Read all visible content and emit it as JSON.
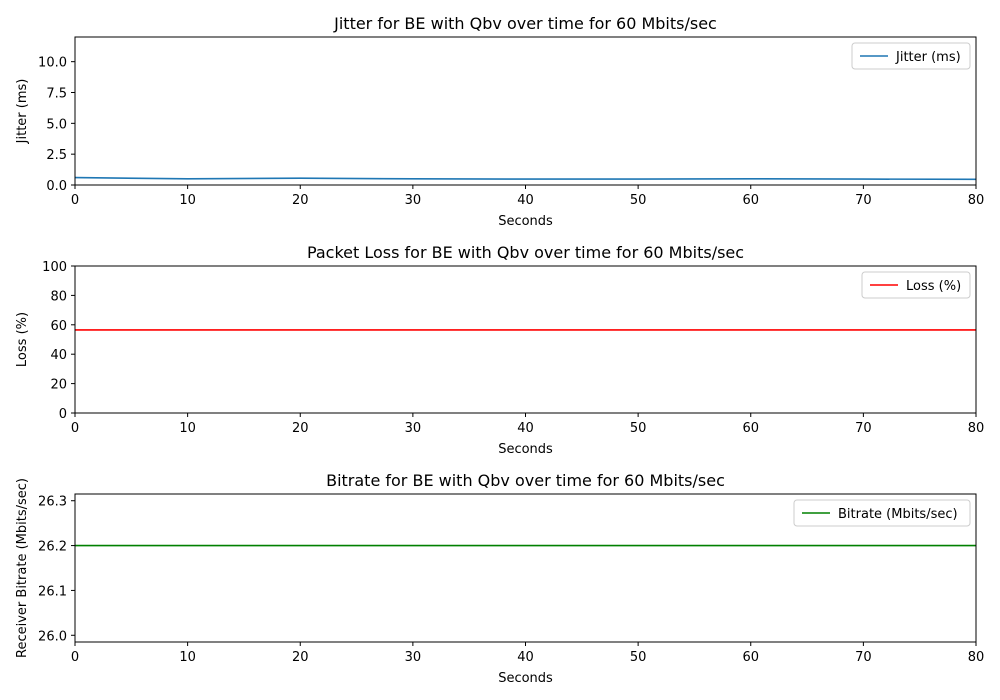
{
  "chart_data": [
    {
      "type": "line",
      "title": "Jitter for BE with Qbv over time for 60 Mbits/sec",
      "xlabel": "Seconds",
      "ylabel": "Jitter (ms)",
      "xlim": [
        0,
        80
      ],
      "ylim": [
        0,
        12
      ],
      "xticks": [
        "0",
        "10",
        "20",
        "30",
        "40",
        "50",
        "60",
        "70",
        "80"
      ],
      "yticks": [
        "0.0",
        "2.5",
        "5.0",
        "7.5",
        "10.0"
      ],
      "grid": false,
      "legend_position": "top-right",
      "series": [
        {
          "name": "Jitter (ms)",
          "color": "#1f77b4",
          "x": [
            0,
            10,
            20,
            30,
            40,
            50,
            60,
            70,
            80
          ],
          "y": [
            0.6,
            0.5,
            0.55,
            0.5,
            0.48,
            0.48,
            0.5,
            0.48,
            0.46
          ]
        }
      ]
    },
    {
      "type": "line",
      "title": "Packet Loss for BE with Qbv over time for 60 Mbits/sec",
      "xlabel": "Seconds",
      "ylabel": "Loss (%)",
      "xlim": [
        0,
        80
      ],
      "ylim": [
        0,
        100
      ],
      "xticks": [
        "0",
        "10",
        "20",
        "30",
        "40",
        "50",
        "60",
        "70",
        "80"
      ],
      "yticks": [
        "0",
        "20",
        "40",
        "60",
        "80",
        "100"
      ],
      "grid": false,
      "legend_position": "top-right",
      "series": [
        {
          "name": "Loss (%)",
          "color": "#ff0000",
          "x": [
            0,
            10,
            20,
            30,
            40,
            50,
            60,
            70,
            80
          ],
          "y": [
            56.5,
            56.5,
            56.5,
            56.5,
            56.5,
            56.5,
            56.5,
            56.5,
            56.5
          ]
        }
      ]
    },
    {
      "type": "line",
      "title": "Bitrate for BE with Qbv over time for 60 Mbits/sec",
      "xlabel": "Seconds",
      "ylabel": "Receiver Bitrate (Mbits/sec)",
      "xlim": [
        0,
        80
      ],
      "ylim": [
        25.985,
        26.315
      ],
      "xticks": [
        "0",
        "10",
        "20",
        "30",
        "40",
        "50",
        "60",
        "70",
        "80"
      ],
      "yticks": [
        "26.0",
        "26.1",
        "26.2",
        "26.3"
      ],
      "grid": false,
      "legend_position": "top-right",
      "series": [
        {
          "name": "Bitrate (Mbits/sec)",
          "color": "#008000",
          "x": [
            0,
            10,
            20,
            30,
            40,
            50,
            60,
            70,
            80
          ],
          "y": [
            26.2,
            26.2,
            26.2,
            26.2,
            26.2,
            26.2,
            26.2,
            26.2,
            26.2
          ]
        }
      ]
    }
  ]
}
